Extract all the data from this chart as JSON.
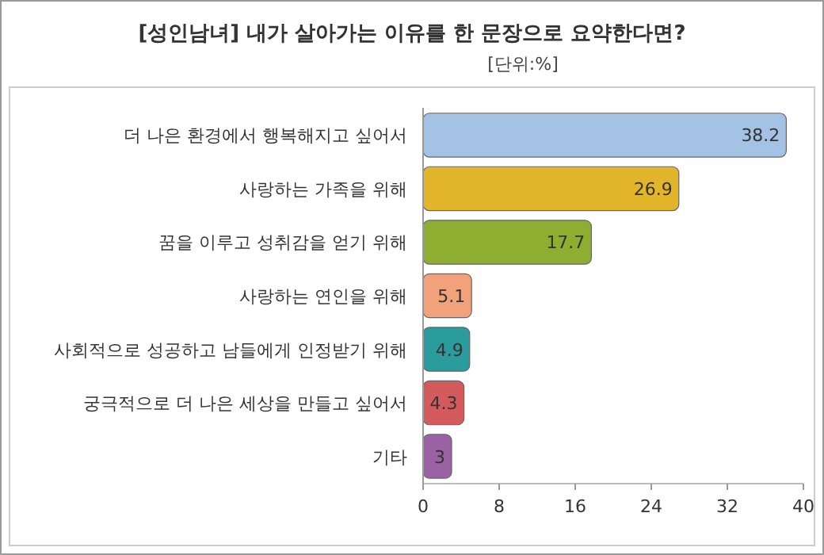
{
  "chart_data": {
    "type": "bar",
    "orientation": "horizontal",
    "title": "[성인남녀] 내가 살아가는 이유를 한 문장으로 요약한다면?",
    "subtitle": "[단위:%]",
    "categories": [
      "더 나은 환경에서 행복해지고 싶어서",
      "사랑하는 가족을 위해",
      "꿈을 이루고 성취감을 얻기 위해",
      "사랑하는 연인을 위해",
      "사회적으로 성공하고 남들에게 인정받기 위해",
      "궁극적으로 더 나은 세상을 만들고 싶어서",
      "기타"
    ],
    "values": [
      38.2,
      26.9,
      17.7,
      5.1,
      4.9,
      4.3,
      3
    ],
    "colors": [
      "#a4c2e4",
      "#e2b52a",
      "#8eae32",
      "#f2a27a",
      "#2a9c9e",
      "#d45a5e",
      "#9a62a4"
    ],
    "xlim": [
      0,
      40
    ],
    "xticks": [
      0,
      8,
      16,
      24,
      32,
      40
    ],
    "data_labels": true,
    "grid": false
  }
}
